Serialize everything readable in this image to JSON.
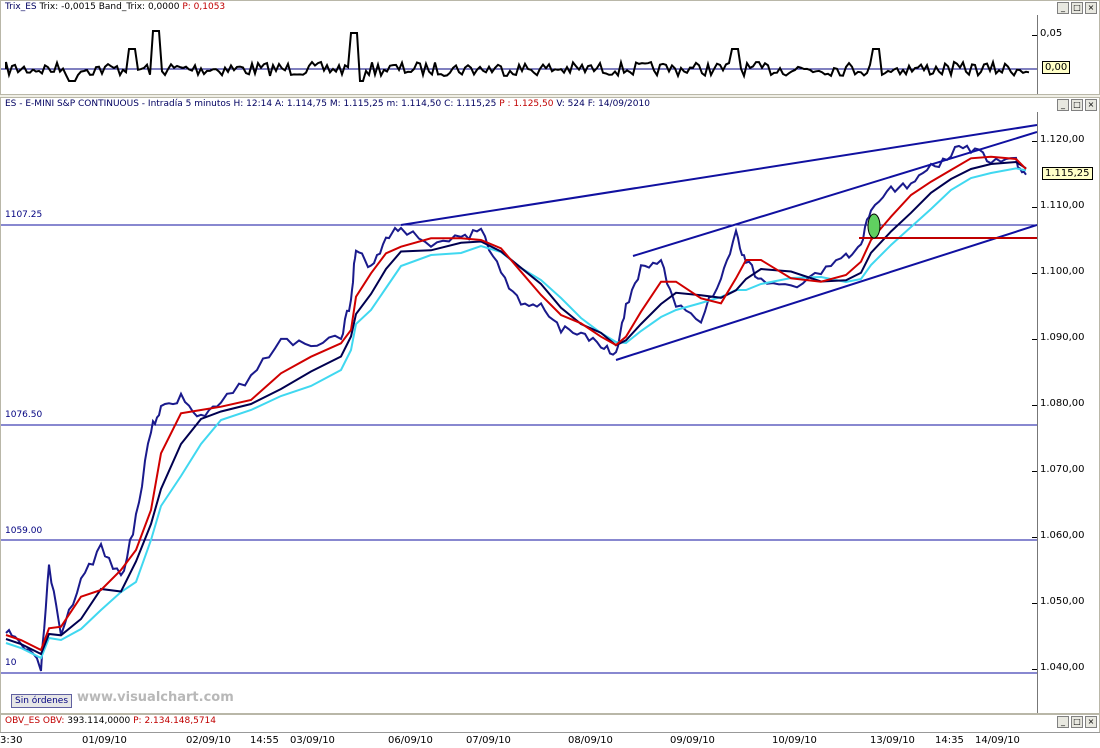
{
  "trix": {
    "header": {
      "name": "Trix_ES",
      "trix_label": "Trix:",
      "trix_val": "-0,0015",
      "band_label": "Band_Trix:",
      "band_val": "0,0000",
      "p_label": "P:",
      "p_val": "0,1053"
    },
    "ticks": [
      "0,05",
      "0,00"
    ],
    "current": "0,00"
  },
  "main": {
    "header": {
      "symbol": "ES - E-MINI S&P CONTINUOUS - Intradía 5 minutos",
      "h": "H: 12:14",
      "a": "A: 1.114,75",
      "m": "M: 1.115,25",
      "mn": "m: 1.114,50",
      "c": "C: 1.115,25",
      "p": "P : 1.125,50",
      "v": "V: 524",
      "f": "F: 14/09/2010"
    },
    "ticks": [
      "1.120,00",
      "1.110,00",
      "1.100,00",
      "1.090,00",
      "1.080,00",
      "1.070,00",
      "1.060,00",
      "1.050,00",
      "1.040,00"
    ],
    "current_price": "1.115,25",
    "levels": [
      "1107.25",
      "1076.50",
      "1059.00",
      "10"
    ],
    "button": "Sin órdenes",
    "watermark": "www.visualchart.com"
  },
  "obv": {
    "header": {
      "name": "OBV_ES",
      "obv_label": "OBV:",
      "obv_val": "393.114,0000",
      "p_label": "P:",
      "p_val": "2.134.148,5714"
    }
  },
  "xaxis": [
    "3:30",
    "01/09/10",
    "02/09/10",
    "14:55",
    "03/09/10",
    "06/09/10",
    "07/09/10",
    "08/09/10",
    "09/09/10",
    "10/09/10",
    "13/09/10",
    "14:35",
    "14/09/10"
  ],
  "colors": {
    "price": "#000000",
    "price_alt": "#1a1a8c",
    "ma_red": "#d00000",
    "ma_navy": "#000050",
    "ma_cyan": "#40d8f0",
    "trend": "#1010a0",
    "support": "#c00000"
  }
}
